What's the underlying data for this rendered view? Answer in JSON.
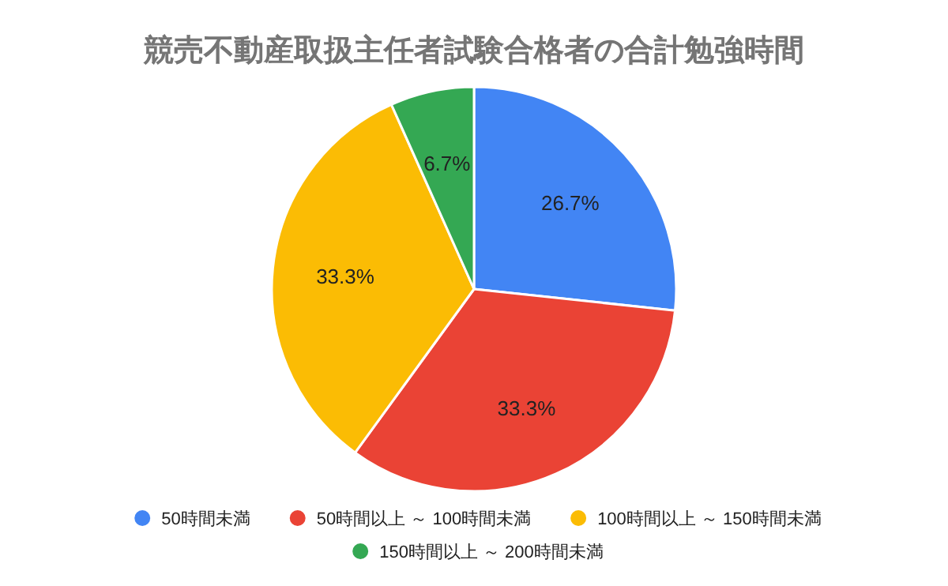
{
  "chart_data": {
    "type": "pie",
    "title": "競売不動産取扱主任者試験合格者の合計勉強時間",
    "categories": [
      "50時間未満",
      "50時間以上 ～ 100時間未満",
      "100時間以上 ～ 150時間未満",
      "150時間以上 ～ 200時間未満"
    ],
    "values": [
      26.7,
      33.3,
      33.3,
      6.7
    ],
    "colors": [
      "#4285f4",
      "#ea4335",
      "#fbbc04",
      "#34a853"
    ],
    "value_labels": [
      "26.7%",
      "33.3%",
      "33.3%",
      "6.7%"
    ],
    "legend": "bottom"
  }
}
